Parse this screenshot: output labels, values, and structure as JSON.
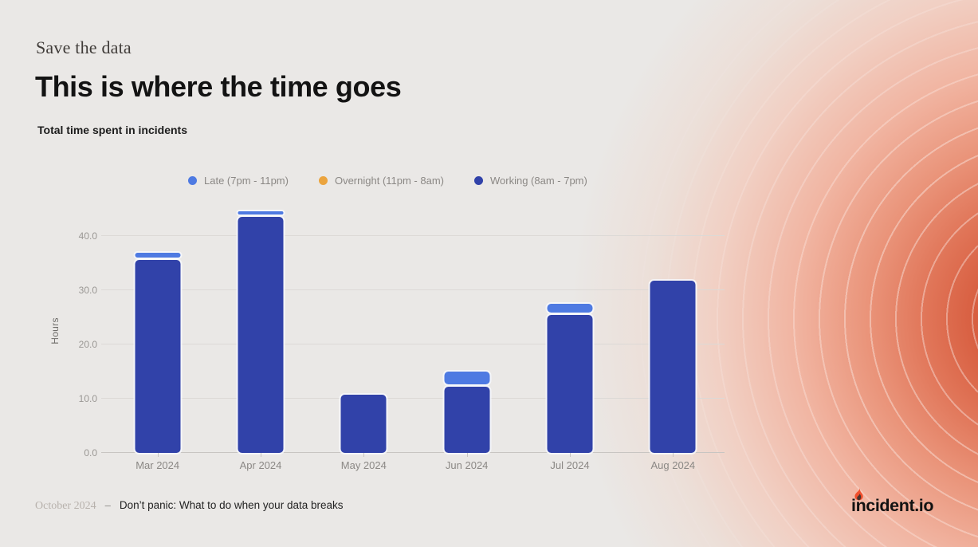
{
  "page": {
    "eyebrow": "Save the data",
    "title": "This is where the time goes",
    "subtitle": "Total time spent in incidents",
    "footer_date": "October 2024",
    "footer_separator": "–",
    "footer_text": "Don’t panic: What to do when your data breaks",
    "logo_text": "incident.io"
  },
  "colors": {
    "background": "#eae8e6",
    "glow_core": "#cc4323",
    "late": "#4e7ae2",
    "overnight": "#eba43e",
    "working": "#3142a9",
    "flame": "#f0502d"
  },
  "chart_data": {
    "type": "bar",
    "stacked": true,
    "title": "Total time spent in incidents",
    "xlabel": "",
    "ylabel": "Hours",
    "ylim": [
      0,
      46
    ],
    "grid": true,
    "legend_position": "top",
    "yticks": [
      0,
      10,
      20,
      30,
      40
    ],
    "ytick_labels": [
      "0.0",
      "10.0",
      "20.0",
      "30.0",
      "40.0"
    ],
    "categories": [
      "Mar 2024",
      "Apr 2024",
      "May 2024",
      "Jun 2024",
      "Jul 2024",
      "Aug 2024"
    ],
    "series": [
      {
        "key": "late",
        "name": "Late (7pm - 11pm)",
        "color": "#4e7ae2",
        "values": [
          0.8,
          0.5,
          0,
          2.3,
          1.6,
          0
        ]
      },
      {
        "key": "overnight",
        "name": "Overnight (11pm - 8am)",
        "color": "#eba43e",
        "values": [
          0,
          0,
          0,
          0,
          0,
          0
        ]
      },
      {
        "key": "working",
        "name": "Working (8am - 7pm)",
        "color": "#3142a9",
        "values": [
          35.6,
          43.6,
          10.7,
          12.2,
          25.4,
          31.8
        ]
      }
    ]
  }
}
